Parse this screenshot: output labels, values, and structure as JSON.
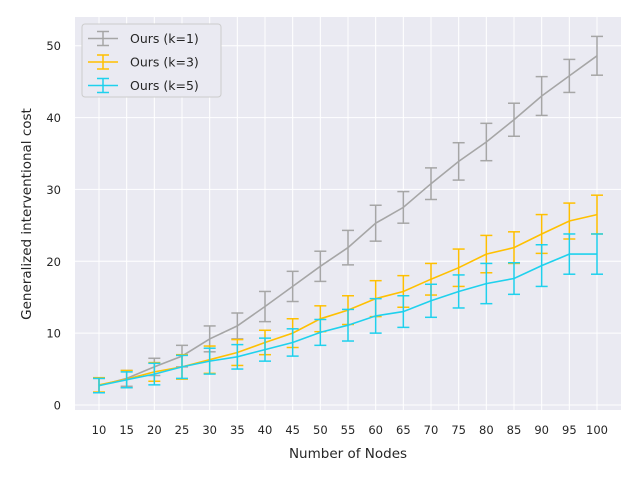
{
  "chart_data": {
    "type": "line",
    "title": "",
    "xlabel": "Number of Nodes",
    "ylabel": "Generalized interventional cost",
    "categories": [
      "10",
      "15",
      "20",
      "25",
      "30",
      "35",
      "40",
      "45",
      "50",
      "55",
      "60",
      "65",
      "70",
      "75",
      "80",
      "85",
      "90",
      "95",
      "100"
    ],
    "yticks": [
      0,
      10,
      20,
      30,
      40,
      50
    ],
    "ylim": [
      -0.7,
      54
    ],
    "grid": true,
    "legend_position": "top-left",
    "series": [
      {
        "name": "Ours (k=1)",
        "color": "#a6a6a6",
        "values": [
          2.7,
          3.7,
          5.3,
          6.8,
          9.2,
          11.0,
          13.7,
          16.5,
          19.3,
          21.9,
          25.3,
          27.5,
          30.8,
          33.9,
          36.6,
          39.7,
          43.0,
          45.8,
          48.6
        ],
        "errors": [
          1.0,
          1.1,
          1.2,
          1.5,
          1.8,
          1.8,
          2.1,
          2.1,
          2.1,
          2.4,
          2.5,
          2.2,
          2.2,
          2.6,
          2.6,
          2.3,
          2.7,
          2.3,
          2.7
        ]
      },
      {
        "name": "Ours (k=3)",
        "color": "#ffc000",
        "values": [
          2.8,
          3.6,
          4.6,
          5.3,
          6.3,
          7.3,
          8.7,
          10.0,
          12.0,
          13.2,
          14.8,
          15.8,
          17.5,
          19.1,
          21.0,
          21.9,
          23.8,
          25.6,
          26.5
        ],
        "errors": [
          1.0,
          1.2,
          1.3,
          1.7,
          1.9,
          1.8,
          1.7,
          2.0,
          1.8,
          2.0,
          2.5,
          2.2,
          2.2,
          2.6,
          2.6,
          2.2,
          2.7,
          2.5,
          2.7
        ]
      },
      {
        "name": "Ours (k=5)",
        "color": "#1fd1ed",
        "values": [
          2.7,
          3.5,
          4.3,
          5.3,
          6.1,
          6.7,
          7.7,
          8.7,
          10.1,
          11.1,
          12.4,
          13.0,
          14.5,
          15.8,
          16.9,
          17.6,
          19.4,
          21.0,
          21.0
        ],
        "errors": [
          1.0,
          1.1,
          1.5,
          1.6,
          1.8,
          1.7,
          1.6,
          1.9,
          1.8,
          2.2,
          2.4,
          2.2,
          2.3,
          2.3,
          2.8,
          2.2,
          2.9,
          2.8,
          2.8
        ]
      }
    ]
  }
}
